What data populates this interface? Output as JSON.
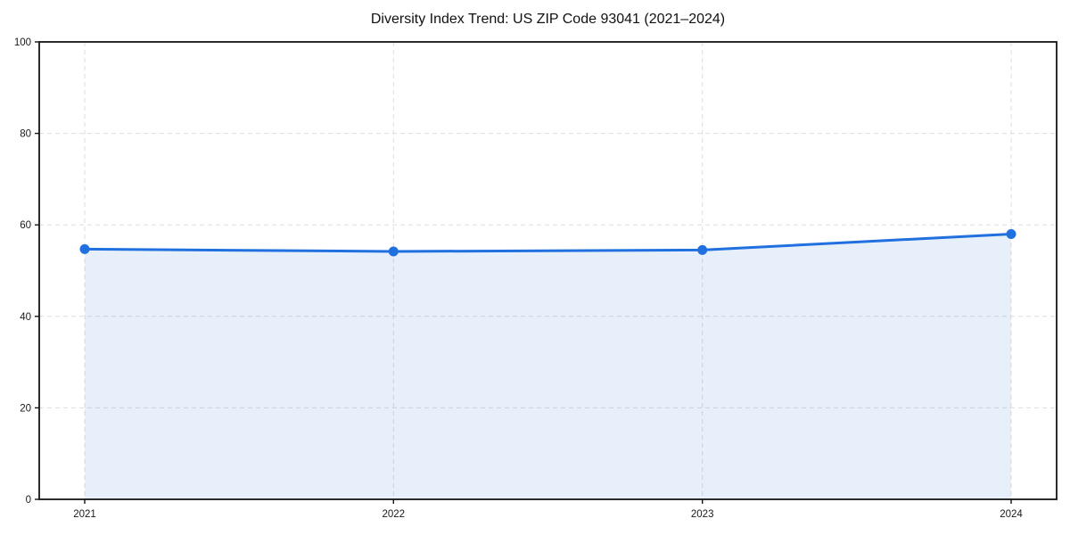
{
  "figure": {
    "title": "Diversity Index Trend: US ZIP Code 93041 (2021–2024)"
  },
  "chart_data": {
    "type": "line",
    "style": "line-with-markers-and-area-fill",
    "title": "Diversity Index Trend: US ZIP Code 93041 (2021–2024)",
    "categories": [
      "2021",
      "2022",
      "2023",
      "2024"
    ],
    "series": [
      {
        "name": "Diversity Index",
        "values": [
          54.7,
          54.2,
          54.5,
          58.0
        ]
      }
    ],
    "xlabel": "",
    "ylabel": "",
    "ylim": [
      0,
      100
    ],
    "yticks": [
      0,
      20,
      40,
      60,
      80,
      100
    ],
    "grid": true,
    "grid_style": "dashed",
    "legend": false,
    "colors": {
      "line": "#2170df",
      "marker": "#2170df",
      "area_fill": "rgba(33, 112, 223, 0.11)",
      "grid": "#dedede",
      "spine": "#141414",
      "tick_text": "#1a1a1a",
      "background": "#ffffff"
    }
  }
}
